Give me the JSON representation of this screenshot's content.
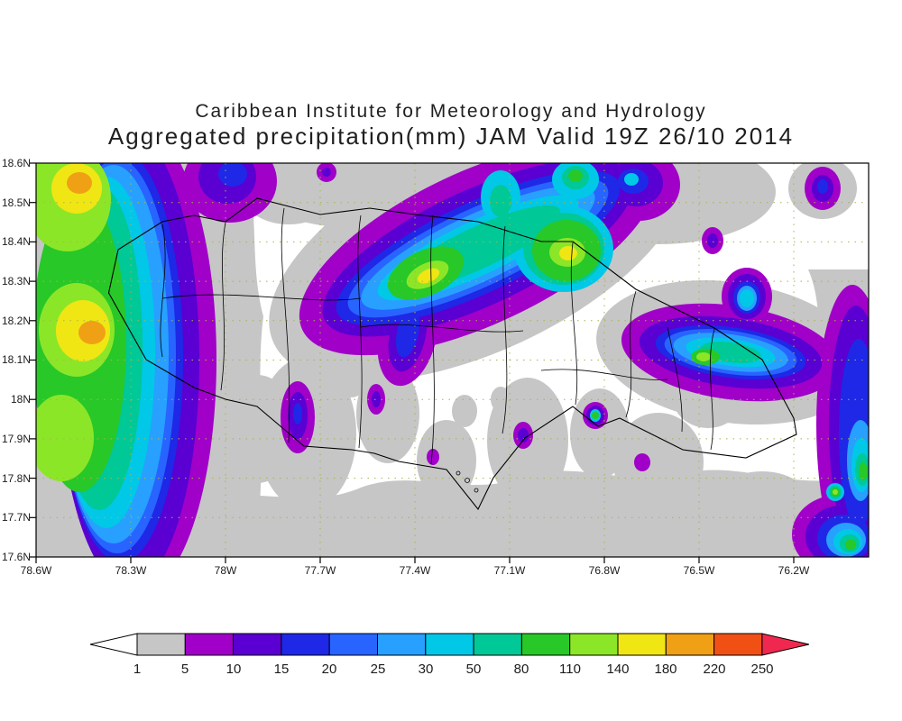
{
  "header": {
    "line1": "Caribbean Institute for Meteorology and Hydrology",
    "line2": "Aggregated precipitation(mm) JAM Valid 19Z 26/10 2014"
  },
  "axes": {
    "lat": [
      "18.6N",
      "18.5N",
      "18.4N",
      "18.3N",
      "18.2N",
      "18.1N",
      "18N",
      "17.9N",
      "17.8N",
      "17.7N",
      "17.6N"
    ],
    "lon": [
      "78.6W",
      "78.3W",
      "78W",
      "77.7W",
      "77.4W",
      "77.1W",
      "76.8W",
      "76.5W",
      "76.2W"
    ]
  },
  "colorbar": {
    "labels": [
      "1",
      "5",
      "10",
      "15",
      "20",
      "25",
      "30",
      "50",
      "80",
      "110",
      "140",
      "180",
      "220",
      "250"
    ],
    "levels_mm": [
      1,
      5,
      10,
      15,
      20,
      25,
      30,
      50,
      80,
      110,
      140,
      180,
      220,
      250
    ],
    "segment_colors": [
      "#c6c6c6",
      "#a000c8",
      "#5a00d2",
      "#1e28e6",
      "#2864ff",
      "#28a0ff",
      "#00c8e6",
      "#00c896",
      "#28c828",
      "#8ce628",
      "#f0e614",
      "#f0a014",
      "#f05014"
    ],
    "below_min_color": "#ffffff",
    "above_max_color": "#f02850",
    "palette_by_level": {
      "1": "#c6c6c6",
      "5": "#a000c8",
      "10": "#5a00d2",
      "15": "#1e28e6",
      "20": "#2864ff",
      "25": "#28a0ff",
      "30": "#00c8e6",
      "50": "#00c896",
      "80": "#28c828",
      "110": "#8ce628",
      "140": "#f0e614",
      "180": "#f0a014",
      "220": "#f05014"
    }
  }
}
